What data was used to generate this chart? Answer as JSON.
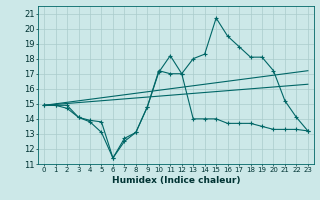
{
  "xlabel": "Humidex (Indice chaleur)",
  "bg_color": "#cce8e8",
  "grid_color": "#aacccc",
  "line_color": "#006666",
  "xlim": [
    -0.5,
    23.5
  ],
  "ylim": [
    11,
    21.5
  ],
  "yticks": [
    11,
    12,
    13,
    14,
    15,
    16,
    17,
    18,
    19,
    20,
    21
  ],
  "xticks": [
    0,
    1,
    2,
    3,
    4,
    5,
    6,
    7,
    8,
    9,
    10,
    11,
    12,
    13,
    14,
    15,
    16,
    17,
    18,
    19,
    20,
    21,
    22,
    23
  ],
  "series_low_x": [
    0,
    1,
    2,
    3,
    4,
    5,
    6,
    7,
    8,
    9,
    10,
    11,
    12,
    13,
    14,
    15,
    16,
    17,
    18,
    19,
    20,
    21,
    22,
    23
  ],
  "series_low_y": [
    14.9,
    14.9,
    14.9,
    14.1,
    13.8,
    13.1,
    11.4,
    12.7,
    13.1,
    14.8,
    17.2,
    17.0,
    17.0,
    14.0,
    14.0,
    14.0,
    13.7,
    13.7,
    13.7,
    13.5,
    13.3,
    13.3,
    13.3,
    13.2
  ],
  "series_high_x": [
    0,
    1,
    2,
    3,
    4,
    5,
    6,
    7,
    8,
    9,
    10,
    11,
    12,
    13,
    14,
    15,
    16,
    17,
    18,
    19,
    20,
    21,
    22,
    23
  ],
  "series_high_y": [
    14.9,
    14.9,
    14.7,
    14.1,
    13.9,
    13.8,
    11.4,
    12.5,
    13.1,
    14.8,
    17.1,
    18.2,
    17.0,
    18.0,
    18.3,
    20.7,
    19.5,
    18.8,
    18.1,
    18.1,
    17.2,
    15.2,
    14.1,
    13.2
  ],
  "line1_x": [
    0,
    23
  ],
  "line1_y": [
    14.9,
    16.3
  ],
  "line2_x": [
    0,
    23
  ],
  "line2_y": [
    14.9,
    17.2
  ]
}
